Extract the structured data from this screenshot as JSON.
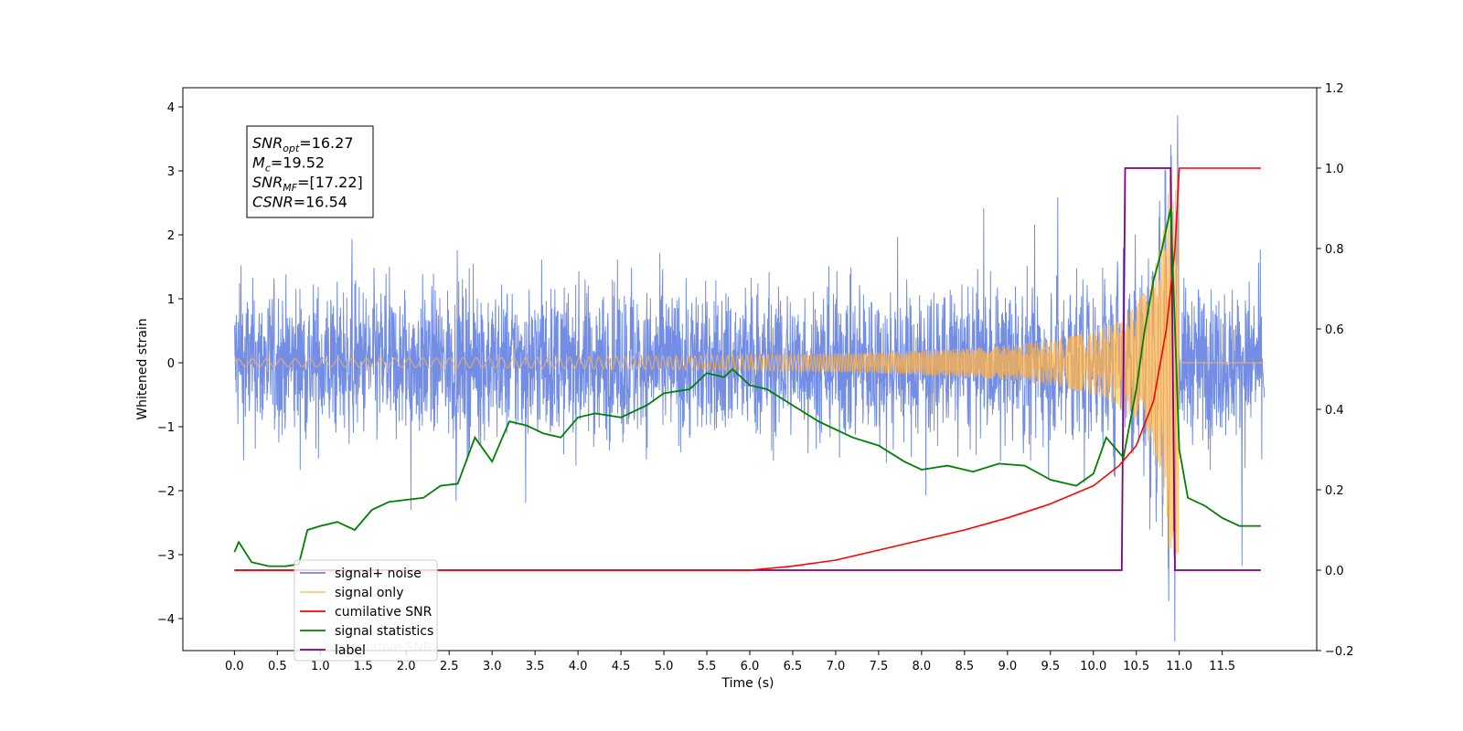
{
  "chart_data": {
    "type": "line",
    "xlabel": "Time (s)",
    "ylabel": "Whitened strain",
    "ylabel_right": "",
    "xlim": [
      -0.6,
      12.6
    ],
    "ylim": [
      -4.5,
      4.3
    ],
    "ylim_right": [
      -0.2,
      1.2
    ],
    "x_ticks": [
      "0.0",
      "0.5",
      "1.0",
      "1.5",
      "2.0",
      "2.5",
      "3.0",
      "3.5",
      "4.0",
      "4.5",
      "5.0",
      "5.5",
      "6.0",
      "6.5",
      "7.0",
      "7.5",
      "8.0",
      "8.5",
      "9.0",
      "9.5",
      "10.0",
      "10.5",
      "11.0",
      "11.5"
    ],
    "y_ticks": [
      "4",
      "3",
      "2",
      "1",
      "0",
      "−1",
      "−2",
      "−3",
      "−4"
    ],
    "y_ticks_right": [
      "1.2",
      "1.0",
      "0.8",
      "0.6",
      "0.4",
      "0.2",
      "0.0",
      "−0.2"
    ],
    "legend_position": "lower-left",
    "annotation": [
      {
        "base": "SNR",
        "sub": "opt",
        "value": "=16.27"
      },
      {
        "base": "M",
        "sub": "c",
        "value": "=19.52"
      },
      {
        "base": "SNR",
        "sub": "MF",
        "value": "=[17.22]"
      },
      {
        "base": "CSNR",
        "sub": "",
        "value": "=16.54"
      }
    ],
    "series": [
      {
        "name": "signal+ noise",
        "axis": "left",
        "color": "#6b87e3",
        "description": "whitened strain noise, roughly within -3.9 to 3.9, spikes near 10.9-11.0 s"
      },
      {
        "name": "signal only",
        "axis": "left",
        "color": "#ffb347",
        "description": "chirp, amplitude growing to about 3 near 10.95 s, then zero"
      },
      {
        "name": "cumilative SNR",
        "axis": "right",
        "color": "#ff0000",
        "x": [
          0.0,
          6.0,
          6.5,
          7.0,
          7.5,
          8.0,
          8.5,
          9.0,
          9.5,
          10.0,
          10.3,
          10.5,
          10.7,
          10.85,
          10.95,
          11.0,
          11.5,
          11.95
        ],
        "y": [
          0.0,
          0.0,
          0.01,
          0.025,
          0.05,
          0.075,
          0.1,
          0.13,
          0.165,
          0.21,
          0.26,
          0.31,
          0.42,
          0.6,
          0.8,
          1.0,
          1.0,
          1.0
        ]
      },
      {
        "name": "signal statistics",
        "axis": "right",
        "color": "#008000",
        "x": [
          0.0,
          0.05,
          0.2,
          0.4,
          0.6,
          0.75,
          0.85,
          1.0,
          1.2,
          1.4,
          1.6,
          1.8,
          2.0,
          2.2,
          2.4,
          2.6,
          2.8,
          3.0,
          3.2,
          3.4,
          3.6,
          3.8,
          4.0,
          4.2,
          4.5,
          4.8,
          5.0,
          5.3,
          5.5,
          5.7,
          5.8,
          6.0,
          6.2,
          6.5,
          6.8,
          7.0,
          7.2,
          7.5,
          7.8,
          8.0,
          8.3,
          8.6,
          8.9,
          9.2,
          9.5,
          9.8,
          10.0,
          10.15,
          10.35,
          10.5,
          10.6,
          10.7,
          10.8,
          10.9,
          11.0,
          11.1,
          11.3,
          11.5,
          11.7,
          11.9,
          11.95
        ],
        "y": [
          0.045,
          0.07,
          0.02,
          0.01,
          0.01,
          0.015,
          0.1,
          0.11,
          0.12,
          0.1,
          0.15,
          0.17,
          0.175,
          0.18,
          0.21,
          0.215,
          0.33,
          0.27,
          0.37,
          0.36,
          0.34,
          0.33,
          0.38,
          0.39,
          0.38,
          0.41,
          0.44,
          0.45,
          0.49,
          0.48,
          0.5,
          0.46,
          0.45,
          0.41,
          0.37,
          0.35,
          0.33,
          0.31,
          0.27,
          0.25,
          0.26,
          0.245,
          0.265,
          0.26,
          0.225,
          0.21,
          0.24,
          0.33,
          0.28,
          0.45,
          0.6,
          0.72,
          0.8,
          0.9,
          0.3,
          0.18,
          0.16,
          0.13,
          0.11,
          0.11,
          0.11
        ]
      },
      {
        "name": "label",
        "axis": "right",
        "color": "#800080",
        "x": [
          0.0,
          10.33,
          10.37,
          10.9,
          10.95,
          11.0,
          11.95
        ],
        "y": [
          0.0,
          0.0,
          1.0,
          1.0,
          0.0,
          0.0,
          0.0
        ]
      }
    ],
    "legend": [
      "signal+ noise",
      "signal only",
      "cumilative SNR",
      "signal statistics",
      "label"
    ],
    "legend_hidden_text": "cumilative SNR"
  }
}
